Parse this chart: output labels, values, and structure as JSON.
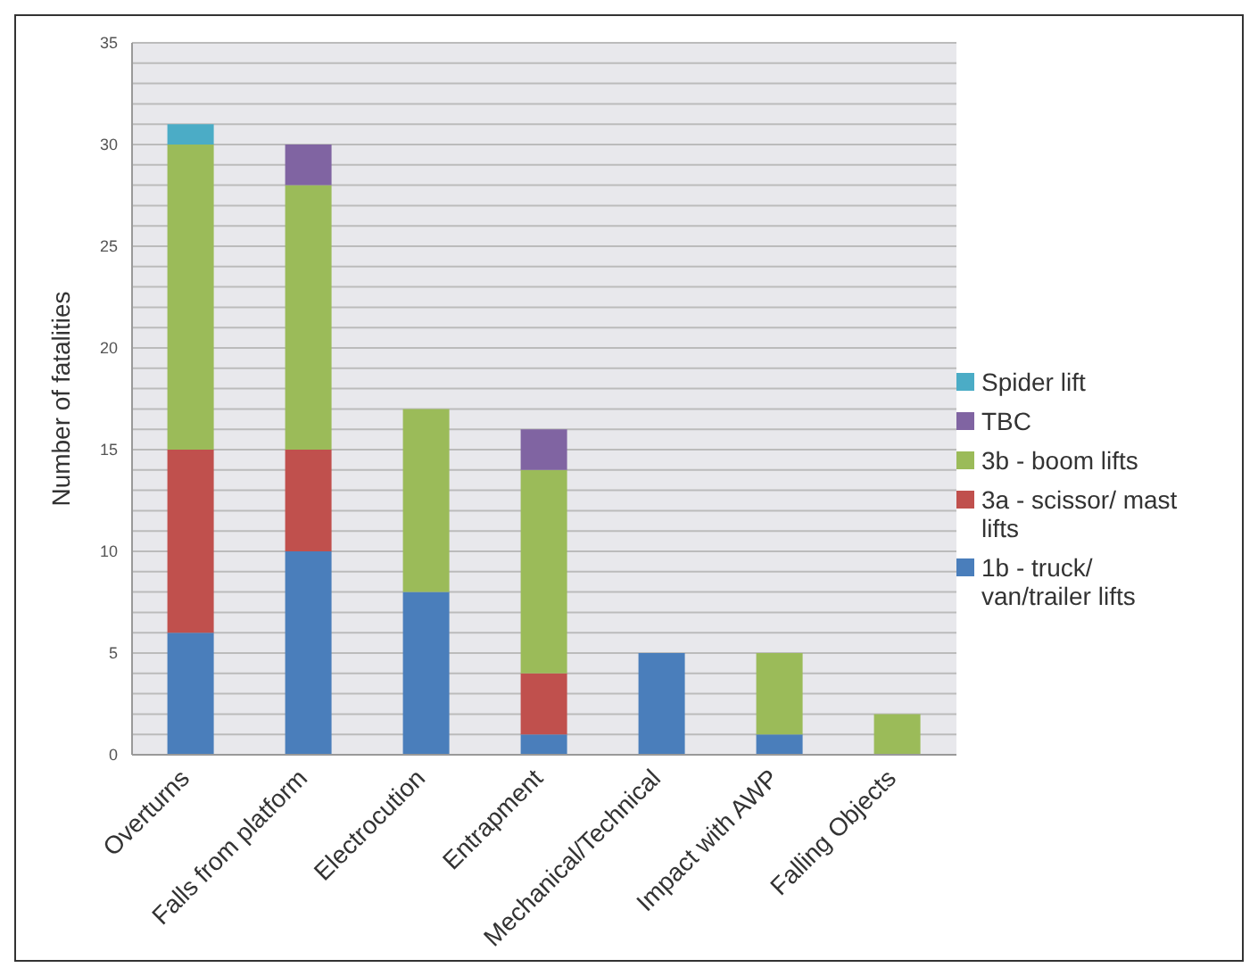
{
  "chart_data": {
    "type": "bar",
    "stacked": true,
    "ylabel": "Number of fatalities",
    "categories": [
      "Overturns",
      "Falls from platform",
      "Electrocution",
      "Entrapment",
      "Mechanical/Technical",
      "Impact with AWP",
      "Falling Objects"
    ],
    "series": [
      {
        "name": "1b - truck/ van/trailer lifts",
        "color": "#4a7ebb",
        "values": [
          6,
          10,
          8,
          1,
          5,
          1,
          0
        ]
      },
      {
        "name": "3a - scissor/ mast lifts",
        "color": "#c0504d",
        "values": [
          9,
          5,
          0,
          3,
          0,
          0,
          0
        ]
      },
      {
        "name": "3b - boom lifts",
        "color": "#9bbb59",
        "values": [
          15,
          13,
          9,
          10,
          0,
          4,
          2
        ]
      },
      {
        "name": "TBC",
        "color": "#8064a2",
        "values": [
          0,
          2,
          0,
          2,
          0,
          0,
          0
        ]
      },
      {
        "name": "Spider lift",
        "color": "#4bacc6",
        "values": [
          1,
          0,
          0,
          0,
          0,
          0,
          0
        ]
      }
    ],
    "ylim": [
      0,
      35
    ],
    "yticks": [
      0,
      {
        "value": 1,
        "label": null
      },
      {
        "value": 2,
        "label": null
      },
      {
        "value": 3,
        "label": null
      },
      {
        "value": 4,
        "label": null
      },
      5,
      {
        "value": 6,
        "label": null
      },
      {
        "value": 7,
        "label": null
      },
      {
        "value": 8,
        "label": null
      },
      {
        "value": 9,
        "label": null
      },
      10,
      {
        "value": 11,
        "label": null
      },
      {
        "value": 12,
        "label": null
      },
      {
        "value": 13,
        "label": null
      },
      {
        "value": 14,
        "label": null
      },
      15,
      {
        "value": 16,
        "label": null
      },
      {
        "value": 17,
        "label": null
      },
      {
        "value": 18,
        "label": null
      },
      {
        "value": 19,
        "label": null
      },
      20,
      {
        "value": 21,
        "label": null
      },
      {
        "value": 22,
        "label": null
      },
      {
        "value": 23,
        "label": null
      },
      {
        "value": 24,
        "label": null
      },
      25,
      {
        "value": 26,
        "label": null
      },
      {
        "value": 27,
        "label": null
      },
      {
        "value": 28,
        "label": null
      },
      {
        "value": 29,
        "label": null
      },
      30,
      {
        "value": 31,
        "label": null
      },
      {
        "value": 32,
        "label": null
      },
      {
        "value": 33,
        "label": null
      },
      {
        "value": 34,
        "label": null
      },
      35
    ],
    "grid": "y",
    "legend": "right"
  }
}
